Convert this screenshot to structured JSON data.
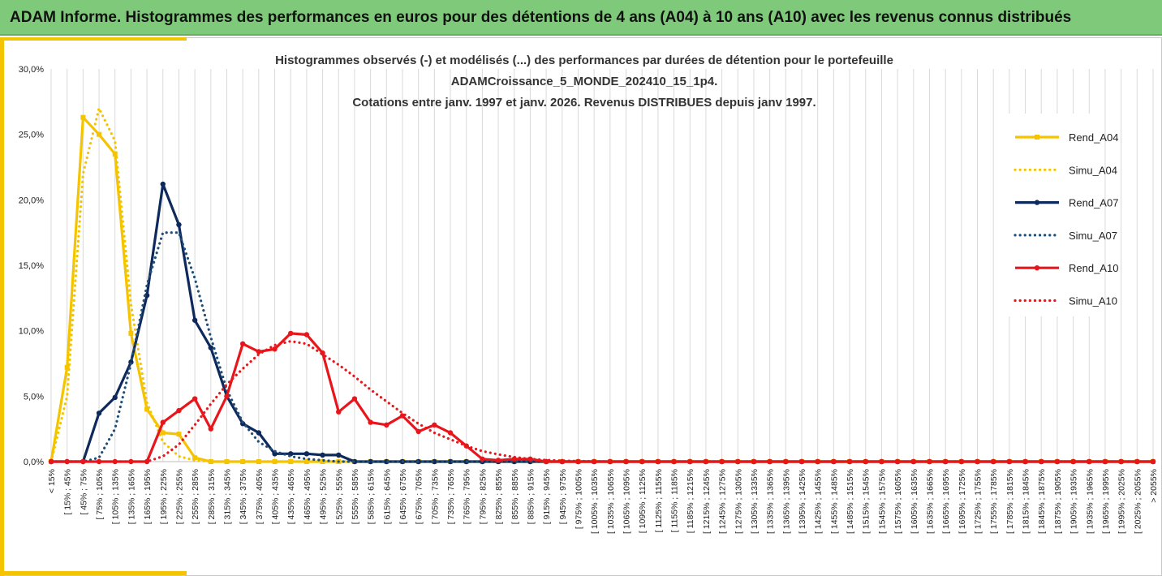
{
  "header": {
    "title": "ADAM Informe. Histogrammes des performances en euros pour des détentions de 4 ans (A04) à 10 ans (A10) avec les revenus connus distribués"
  },
  "chart_data": {
    "type": "line",
    "title_lines": [
      "Histogrammes observés (-) et modélisés (...) des performances par durées de détention pour le portefeuille",
      "ADAMCroissance_5_MONDE_202410_15_1p4.",
      "Cotations entre janv. 1997 et janv. 2026. Revenus DISTRIBUES depuis janv 1997."
    ],
    "ylim": [
      0,
      30
    ],
    "y_ticks": [
      "0,0%",
      "5,0%",
      "10,0%",
      "15,0%",
      "20,0%",
      "25,0%",
      "30,0%"
    ],
    "grid": "vertical",
    "legend_position": "right",
    "categories": [
      "< 15%",
      "[ 15% ; 45%",
      "[ 45% ; 75%",
      "[ 75% ; 105%",
      "[ 105% ; 135%",
      "[ 135% ; 165%",
      "[ 165% ; 195%",
      "[ 195% ; 225%",
      "[ 225% ; 255%",
      "[ 255% ; 285%",
      "[ 285% ; 315%",
      "[ 315% ; 345%",
      "[ 345% ; 375%",
      "[ 375% ; 405%",
      "[ 405% ; 435%",
      "[ 435% ; 465%",
      "[ 465% ; 495%",
      "[ 495% ; 525%",
      "[ 525% ; 555%",
      "[ 555% ; 585%",
      "[ 585% ; 615%",
      "[ 615% ; 645%",
      "[ 645% ; 675%",
      "[ 675% ; 705%",
      "[ 705% ; 735%",
      "[ 735% ; 765%",
      "[ 765% ; 795%",
      "[ 795% ; 825%",
      "[ 825% ; 855%",
      "[ 855% ; 885%",
      "[ 885% ; 915%",
      "[ 915% ; 945%",
      "[ 945% ; 975%",
      "[ 975% ; 1005%",
      "[ 1005% ; 1035%",
      "[ 1035% ; 1065%",
      "[ 1065% ; 1095%",
      "[ 1095% ; 1125%",
      "[ 1125% ; 1155%",
      "[ 1155% ; 1185%",
      "[ 1185% ; 1215%",
      "[ 1215% ; 1245%",
      "[ 1245% ; 1275%",
      "[ 1275% ; 1305%",
      "[ 1305% ; 1335%",
      "[ 1335% ; 1365%",
      "[ 1365% ; 1395%",
      "[ 1395% ; 1425%",
      "[ 1425% ; 1455%",
      "[ 1455% ; 1485%",
      "[ 1485% ; 1515%",
      "[ 1515% ; 1545%",
      "[ 1545% ; 1575%",
      "[ 1575% ; 1605%",
      "[ 1605% ; 1635%",
      "[ 1635% ; 1665%",
      "[ 1665% ; 1695%",
      "[ 1695% ; 1725%",
      "[ 1725% ; 1755%",
      "[ 1755% ; 1785%",
      "[ 1785% ; 1815%",
      "[ 1815% ; 1845%",
      "[ 1845% ; 1875%",
      "[ 1875% ; 1905%",
      "[ 1905% ; 1935%",
      "[ 1935% ; 1965%",
      "[ 1965% ; 1995%",
      "[ 1995% ; 2025%",
      "[ 2025% ; 2055%",
      "> 2055%"
    ],
    "series": [
      {
        "name": "Rend_A04",
        "color": "#f5c400",
        "style": "solid",
        "marker": "square",
        "values": [
          0,
          7.2,
          26.3,
          25,
          23.5,
          9.8,
          4,
          2.2,
          2.1,
          0.3,
          0,
          0,
          0,
          0,
          0,
          0,
          0,
          0,
          0,
          0,
          0,
          0,
          0,
          0,
          0,
          0,
          0,
          0,
          0,
          0,
          0,
          0,
          0,
          0,
          0,
          0,
          0,
          0,
          0,
          0,
          0,
          0,
          0,
          0,
          0,
          0,
          0,
          0,
          0,
          0,
          0,
          0,
          0,
          0,
          0,
          0,
          0,
          0,
          0,
          0,
          0,
          0,
          0,
          0,
          0,
          0,
          0,
          0,
          0,
          0
        ]
      },
      {
        "name": "Simu_A04",
        "color": "#f5c400",
        "style": "dotted",
        "marker": "none",
        "values": [
          0,
          5,
          22,
          27,
          24.5,
          12,
          4.5,
          1.5,
          0.4,
          0.1,
          0,
          0,
          0,
          0,
          0,
          0,
          0,
          0,
          0,
          0,
          0,
          0,
          0,
          0,
          0,
          0,
          0,
          0,
          0,
          0,
          0,
          0,
          0,
          0,
          0,
          0,
          0,
          0,
          0,
          0,
          0,
          0,
          0,
          0,
          0,
          0,
          0,
          0,
          0,
          0,
          0,
          0,
          0,
          0,
          0,
          0,
          0,
          0,
          0,
          0,
          0,
          0,
          0,
          0,
          0,
          0,
          0,
          0,
          0,
          0
        ]
      },
      {
        "name": "Rend_A07",
        "color": "#0e2a5c",
        "style": "solid",
        "marker": "circle",
        "values": [
          0,
          0,
          0,
          3.7,
          4.9,
          7.6,
          12.7,
          21.2,
          18.1,
          10.8,
          8.7,
          5,
          2.9,
          2.2,
          0.6,
          0.6,
          0.6,
          0.5,
          0.5,
          0,
          0,
          0,
          0,
          0,
          0,
          0,
          0,
          0,
          0,
          0,
          0,
          0,
          0,
          0,
          0,
          0,
          0,
          0,
          0,
          0,
          0,
          0,
          0,
          0,
          0,
          0,
          0,
          0,
          0,
          0,
          0,
          0,
          0,
          0,
          0,
          0,
          0,
          0,
          0,
          0,
          0,
          0,
          0,
          0,
          0,
          0,
          0,
          0,
          0,
          0
        ]
      },
      {
        "name": "Simu_A07",
        "color": "#1f4e79",
        "style": "dotted",
        "marker": "none",
        "values": [
          0,
          0,
          0,
          0.3,
          2.5,
          7.5,
          13.5,
          17.5,
          17.5,
          14,
          9.5,
          5.5,
          3,
          1.5,
          0.8,
          0.4,
          0.2,
          0.1,
          0,
          0,
          0,
          0,
          0,
          0,
          0,
          0,
          0,
          0,
          0,
          0,
          0,
          0,
          0,
          0,
          0,
          0,
          0,
          0,
          0,
          0,
          0,
          0,
          0,
          0,
          0,
          0,
          0,
          0,
          0,
          0,
          0,
          0,
          0,
          0,
          0,
          0,
          0,
          0,
          0,
          0,
          0,
          0,
          0,
          0,
          0,
          0,
          0,
          0,
          0,
          0
        ]
      },
      {
        "name": "Rend_A10",
        "color": "#e8161b",
        "style": "solid",
        "marker": "circle",
        "values": [
          0,
          0,
          0,
          0,
          0,
          0,
          0,
          3,
          3.9,
          4.8,
          2.5,
          5,
          9,
          8.4,
          8.6,
          9.8,
          9.7,
          8.3,
          3.8,
          4.8,
          3,
          2.8,
          3.5,
          2.3,
          2.8,
          2.2,
          1.2,
          0.2,
          0.1,
          0.2,
          0.2,
          0,
          0,
          0,
          0,
          0,
          0,
          0,
          0,
          0,
          0,
          0,
          0,
          0,
          0,
          0,
          0,
          0,
          0,
          0,
          0,
          0,
          0,
          0,
          0,
          0,
          0,
          0,
          0,
          0,
          0,
          0,
          0,
          0,
          0,
          0,
          0,
          0,
          0,
          0
        ]
      },
      {
        "name": "Simu_A10",
        "color": "#e8161b",
        "style": "dotted",
        "marker": "none",
        "values": [
          0,
          0,
          0,
          0,
          0,
          0,
          0,
          0.4,
          1.3,
          2.8,
          4.4,
          5.9,
          7.1,
          8.2,
          8.9,
          9.2,
          9,
          8.2,
          7.4,
          6.5,
          5.5,
          4.6,
          3.7,
          2.9,
          2.2,
          1.7,
          1.2,
          0.8,
          0.55,
          0.35,
          0.2,
          0.12,
          0.07,
          0.04,
          0.02,
          0,
          0,
          0,
          0,
          0,
          0,
          0,
          0,
          0,
          0,
          0,
          0,
          0,
          0,
          0,
          0,
          0,
          0,
          0,
          0,
          0,
          0,
          0,
          0,
          0,
          0,
          0,
          0,
          0,
          0,
          0,
          0,
          0,
          0,
          0
        ]
      }
    ]
  }
}
